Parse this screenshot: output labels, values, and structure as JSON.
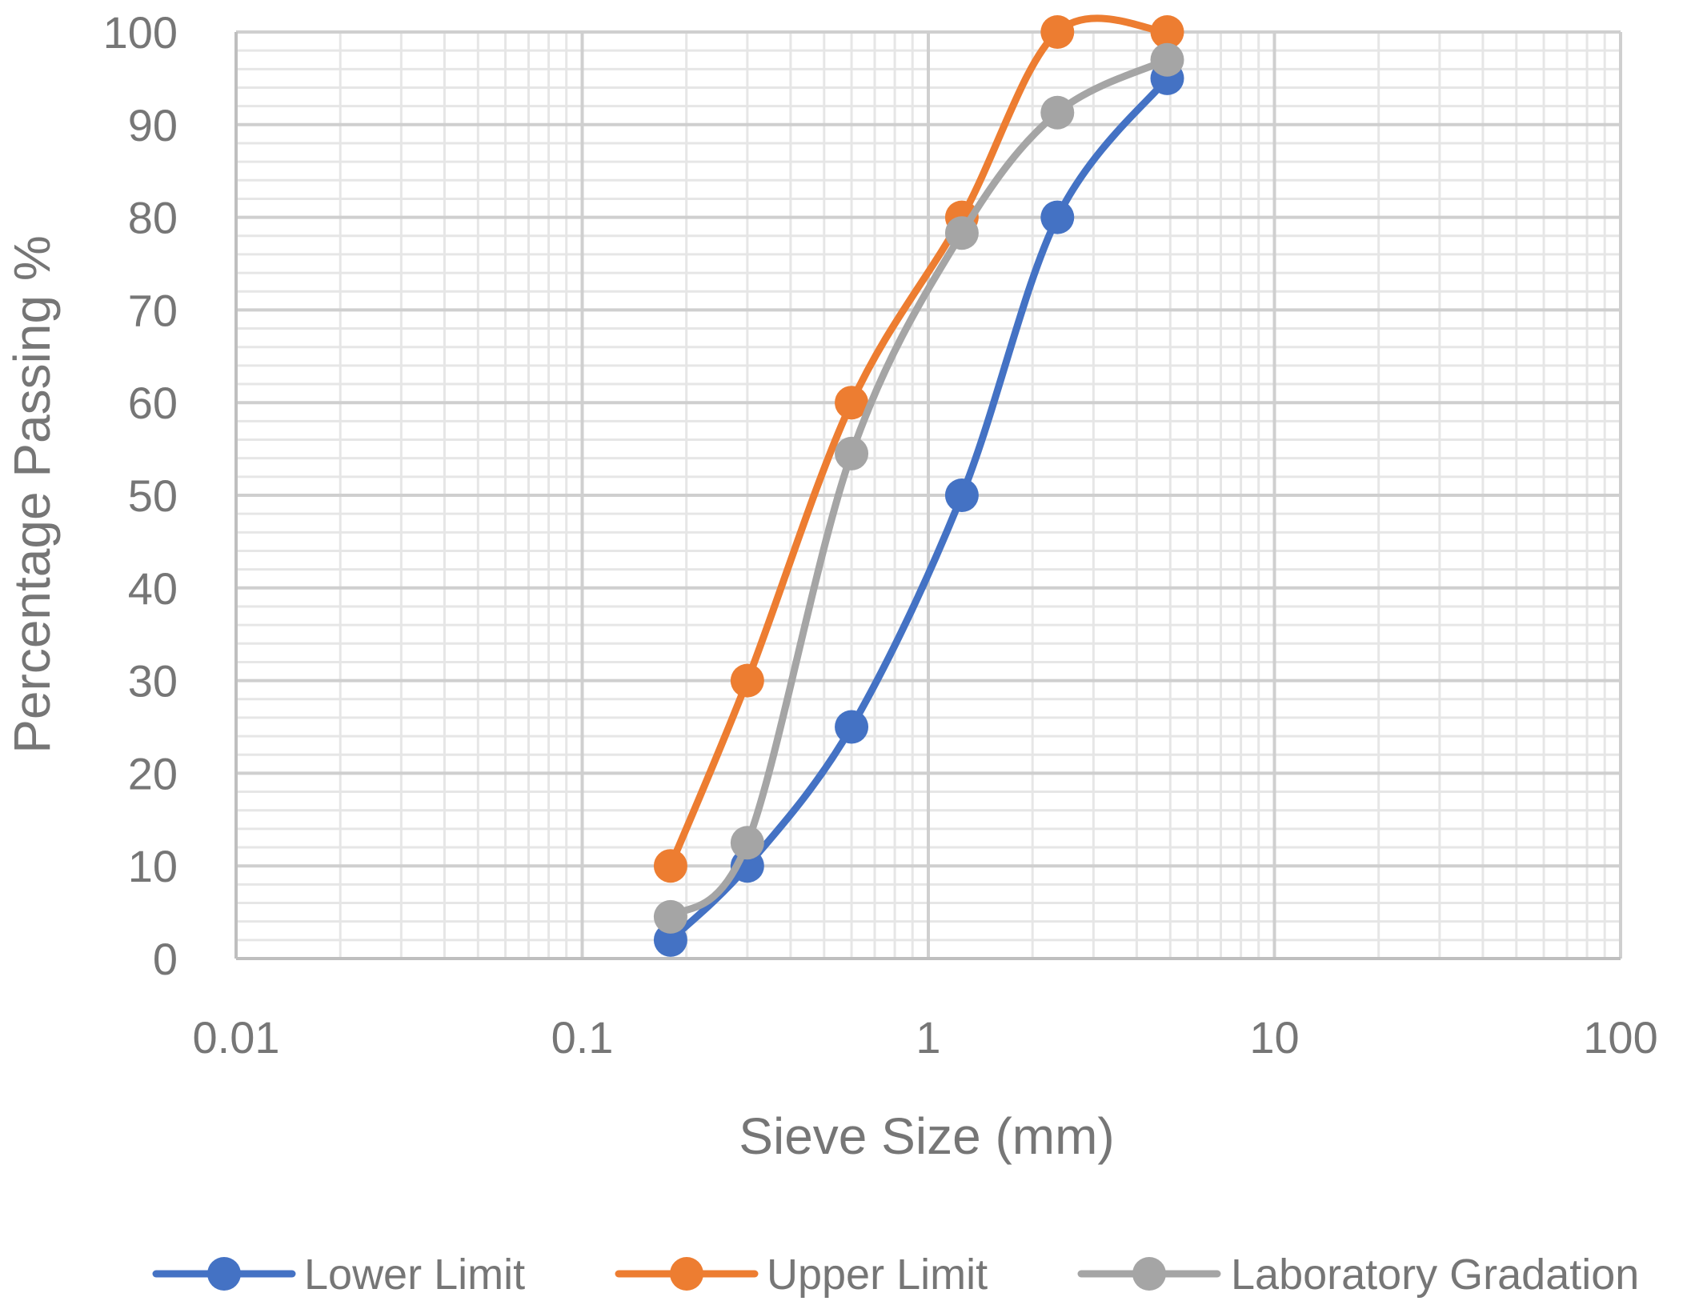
{
  "chart_data": {
    "type": "line",
    "xscale": "log",
    "xlim": [
      0.01,
      100
    ],
    "ylim": [
      0,
      100
    ],
    "xlabel": "Sieve Size (mm)",
    "ylabel": "Percentage Passing %",
    "x_ticks": [
      "0.01",
      "0.1",
      "1",
      "10",
      "100"
    ],
    "y_ticks": [
      "0",
      "10",
      "20",
      "30",
      "40",
      "50",
      "60",
      "70",
      "80",
      "90",
      "100"
    ],
    "grid": true,
    "legend_position": "bottom",
    "series": [
      {
        "name": "Lower Limit",
        "color": "#4472C4",
        "x": [
          0.18,
          0.3,
          0.6,
          1.25,
          2.36,
          4.9
        ],
        "y": [
          2,
          10,
          25,
          50,
          80,
          95
        ]
      },
      {
        "name": "Upper Limit",
        "color": "#ED7D31",
        "x": [
          0.18,
          0.3,
          0.6,
          1.25,
          2.36,
          4.9
        ],
        "y": [
          10,
          30,
          60,
          80,
          100,
          100
        ]
      },
      {
        "name": "Laboratory Gradation",
        "color": "#A5A5A5",
        "x": [
          0.18,
          0.3,
          0.6,
          1.25,
          2.36,
          4.9
        ],
        "y": [
          4.5,
          12.5,
          54.5,
          78.3,
          91.3,
          97
        ]
      }
    ]
  }
}
